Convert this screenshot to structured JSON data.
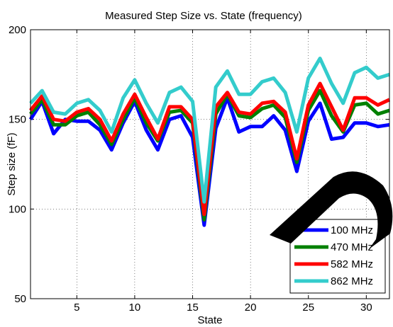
{
  "chart_data": {
    "type": "line",
    "title": "Measured Step Size vs. State (frequency)",
    "xlabel": "State",
    "ylabel": "Step size (fF)",
    "xlim": [
      1,
      32
    ],
    "ylim": [
      50,
      200
    ],
    "xticks": [
      5,
      10,
      15,
      20,
      25,
      30
    ],
    "yticks": [
      50,
      100,
      150,
      200
    ],
    "grid": true,
    "legend_position": "bottom-right",
    "x": [
      1,
      2,
      3,
      4,
      5,
      6,
      7,
      8,
      9,
      10,
      11,
      12,
      13,
      14,
      15,
      16,
      17,
      18,
      19,
      20,
      21,
      22,
      23,
      24,
      25,
      26,
      27,
      28,
      29,
      30,
      31,
      32
    ],
    "series": [
      {
        "name": "100 MHz",
        "color": "#0000ff",
        "values": [
          150,
          160,
          142,
          150,
          149,
          149,
          144,
          133,
          148,
          160,
          144,
          133,
          150,
          152,
          140,
          91,
          145,
          162,
          143,
          146,
          146,
          152,
          144,
          121,
          149,
          159,
          139,
          140,
          148,
          148,
          146,
          147
        ]
      },
      {
        "name": "470 MHz",
        "color": "#008000",
        "values": [
          153,
          161,
          147,
          147,
          152,
          154,
          147,
          136,
          150,
          162,
          148,
          138,
          154,
          155,
          148,
          94,
          153,
          164,
          152,
          151,
          156,
          158,
          151,
          126,
          155,
          166,
          152,
          143,
          158,
          159,
          153,
          155
        ]
      },
      {
        "name": "582 MHz",
        "color": "#ff0000",
        "values": [
          155,
          163,
          150,
          149,
          154,
          156,
          150,
          138,
          153,
          164,
          151,
          139,
          157,
          157,
          150,
          97,
          157,
          165,
          154,
          153,
          159,
          160,
          154,
          128,
          158,
          170,
          157,
          144,
          162,
          162,
          158,
          161
        ]
      },
      {
        "name": "862 MHz",
        "color": "#33cccc",
        "values": [
          159,
          166,
          154,
          153,
          159,
          161,
          155,
          143,
          162,
          172,
          159,
          148,
          165,
          168,
          160,
          104,
          168,
          177,
          164,
          164,
          171,
          173,
          165,
          143,
          173,
          184,
          170,
          159,
          176,
          179,
          173,
          175
        ]
      }
    ]
  }
}
